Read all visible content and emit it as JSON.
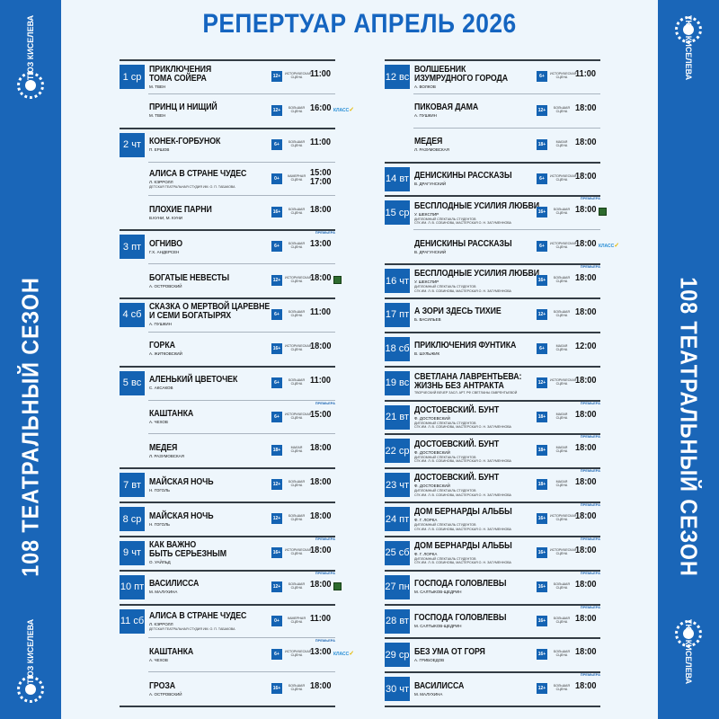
{
  "header": {
    "title": "РЕПЕРТУАР АПРЕЛЬ 2026"
  },
  "side": {
    "season": "108  ТЕАТРАЛЬНЫЙ СЕЗОН",
    "logo_text": "ТЮЗ КИСЕЛЕВА"
  },
  "colors": {
    "brand": "#1a66b8",
    "accent": "#1463b3",
    "background": "#eef6fc"
  },
  "labels": {
    "premiere": "ПРЕМЬЕРА",
    "klass": "КЛАСС"
  },
  "columns": [
    [
      {
        "day": "1 ср",
        "title": "ПРИКЛЮЧЕНИЯ\nТОМА СОЙЕРА",
        "author": "М. ТВЕН",
        "age": "12+",
        "venue": "ИСТОРИЧЕСКАЯ\nСЦЕНА",
        "time": "11:00"
      },
      {
        "title": "ПРИНЦ И НИЩИЙ",
        "author": "М. ТВЕН",
        "age": "12+",
        "venue": "БОЛЬШАЯ\nСЦЕНА",
        "time": "16:00",
        "extra": "klass"
      },
      {
        "day": "2 чт",
        "title": "КОНЕК-ГОРБУНОК",
        "author": "П. ЕРШОВ",
        "age": "6+",
        "venue": "БОЛЬШАЯ\nСЦЕНА",
        "time": "11:00"
      },
      {
        "title": "АЛИСА В СТРАНЕ ЧУДЕС",
        "author": "Л. КЭРРОЛЛ",
        "note": "ДЕТСКАЯ ТЕАТРАЛЬНАЯ СТУДИЯ ИМ. О. П. ТАБАКОВА",
        "age": "0+",
        "venue": "КАМЕРНАЯ\nСЦЕНА",
        "time": "15:00\n17:00"
      },
      {
        "title": "ПЛОХИЕ ПАРНИ",
        "author": "В.КУНИ, М. КУНИ",
        "age": "16+",
        "venue": "БОЛЬШАЯ\nСЦЕНА",
        "time": "18:00"
      },
      {
        "day": "3 пт",
        "title": "ОГНИВО",
        "author": "Г.Х. АНДЕРСЕН",
        "age": "6+",
        "venue": "БОЛЬШАЯ\nСЦЕНА",
        "time": "13:00",
        "premiere": true
      },
      {
        "title": "БОГАТЫЕ НЕВЕСТЫ",
        "author": "А. ОСТРОВСКИЙ",
        "age": "12+",
        "venue": "ИСТОРИЧЕСКАЯ\nСЦЕНА",
        "time": "18:00",
        "extra": "green"
      },
      {
        "day": "4 сб",
        "title": "СКАЗКА О МЕРТВОЙ ЦАРЕВНЕ\nИ СЕМИ БОГАТЫРЯХ",
        "author": "А. ПУШКИН",
        "age": "6+",
        "venue": "БОЛЬШАЯ\nСЦЕНА",
        "time": "11:00"
      },
      {
        "title": "ГОРКА",
        "author": "А. ЖИТКОВСКИЙ",
        "age": "16+",
        "venue": "ИСТОРИЧЕСКАЯ\nСЦЕНА",
        "time": "18:00"
      },
      {
        "day": "5 вс",
        "title": "АЛЕНЬКИЙ ЦВЕТОЧЕК",
        "author": "С. АКСАКОВ",
        "age": "6+",
        "venue": "БОЛЬШАЯ\nСЦЕНА",
        "time": "11:00"
      },
      {
        "title": "КАШТАНКА",
        "author": "А. ЧЕХОВ",
        "age": "6+",
        "venue": "ИСТОРИЧЕСКАЯ\nСЦЕНА",
        "time": "15:00",
        "premiere": true
      },
      {
        "title": "МЕДЕЯ",
        "author": "Л. РАЗУМОВСКАЯ",
        "age": "18+",
        "venue": "МАЛАЯ\nСЦЕНА",
        "time": "18:00"
      },
      {
        "day": "7 вт",
        "title": "МАЙСКАЯ НОЧЬ",
        "author": "Н. ГОГОЛЬ",
        "age": "12+",
        "venue": "БОЛЬШАЯ\nСЦЕНА",
        "time": "18:00"
      },
      {
        "day": "8 ср",
        "title": "МАЙСКАЯ НОЧЬ",
        "author": "Н. ГОГОЛЬ",
        "age": "12+",
        "venue": "БОЛЬШАЯ\nСЦЕНА",
        "time": "18:00"
      },
      {
        "day": "9 чт",
        "title": "КАК ВАЖНО\nБЫТЬ СЕРЬЕЗНЫМ",
        "author": "О. УАЙЛЬД",
        "age": "16+",
        "venue": "ИСТОРИЧЕСКАЯ\nСЦЕНА",
        "time": "18:00",
        "premiere": true
      },
      {
        "day": "10 пт",
        "title": "ВАСИЛИССА",
        "author": "М. МАЛУХИНА",
        "age": "12+",
        "venue": "БОЛЬШАЯ\nСЦЕНА",
        "time": "18:00",
        "premiere": true,
        "extra": "green"
      },
      {
        "day": "11 сб",
        "title": "АЛИСА В СТРАНЕ ЧУДЕС",
        "author": "Л. КЭРРОЛЛ",
        "note": "ДЕТСКАЯ ТЕАТРАЛЬНАЯ СТУДИЯ ИМ. О. П. ТАБАКОВА",
        "age": "0+",
        "venue": "КАМЕРНАЯ\nСЦЕНА",
        "time": "11:00"
      },
      {
        "title": "КАШТАНКА",
        "author": "А. ЧЕХОВ",
        "age": "6+",
        "venue": "ИСТОРИЧЕСКАЯ\nСЦЕНА",
        "time": "13:00",
        "premiere": true,
        "extra": "klass"
      },
      {
        "title": "ГРОЗА",
        "author": "А. ОСТРОВСКИЙ",
        "age": "16+",
        "venue": "БОЛЬШАЯ\nСЦЕНА",
        "time": "18:00"
      }
    ],
    [
      {
        "day": "12 вс",
        "title": "ВОЛШЕБНИК\nИЗУМРУДНОГО ГОРОДА",
        "author": "А. ВОЛКОВ",
        "age": "6+",
        "venue": "ИСТОРИЧЕСКАЯ\nСЦЕНА",
        "time": "11:00"
      },
      {
        "title": "ПИКОВАЯ ДАМА",
        "author": "А. ПУШКИН",
        "age": "12+",
        "venue": "БОЛЬШАЯ\nСЦЕНА",
        "time": "18:00"
      },
      {
        "title": "МЕДЕЯ",
        "author": "Л. РАЗУМОВСКАЯ",
        "age": "18+",
        "venue": "МАЛАЯ\nСЦЕНА",
        "time": "18:00"
      },
      {
        "day": "14 вт",
        "title": "ДЕНИСКИНЫ РАССКАЗЫ",
        "author": "В. ДРАГУНСКИЙ",
        "age": "6+",
        "venue": "ИСТОРИЧЕСКАЯ\nСЦЕНА",
        "time": "18:00"
      },
      {
        "day": "15 ср",
        "title": "БЕСПЛОДНЫЕ УСИЛИЯ ЛЮБВИ",
        "author": "У. ШЕКСПИР",
        "note": "ДИПЛОМНЫЙ СПЕКТАКЛЬ СТУДЕНТОВ\nСГК ИМ. Л. В. СОБИНОВА, МАСТЕРСКАЯ О. Н. ЗАГУМЕННОВА",
        "age": "16+",
        "venue": "БОЛЬШАЯ\nСЦЕНА",
        "time": "18:00",
        "premiere": true,
        "extra": "green"
      },
      {
        "title": "ДЕНИСКИНЫ РАССКАЗЫ",
        "author": "В. ДРАГУНСКИЙ",
        "age": "6+",
        "venue": "ИСТОРИЧЕСКАЯ\nСЦЕНА",
        "time": "18:00",
        "extra": "klass"
      },
      {
        "day": "16 чт",
        "title": "БЕСПЛОДНЫЕ УСИЛИЯ ЛЮБВИ",
        "author": "У. ШЕКСПИР",
        "note": "ДИПЛОМНЫЙ СПЕКТАКЛЬ СТУДЕНТОВ\nСГК ИМ. Л. В. СОБИНОВА, МАСТЕРСКАЯ О. Н. ЗАГУМЕННОВА",
        "age": "16+",
        "venue": "БОЛЬШАЯ\nСЦЕНА",
        "time": "18:00",
        "premiere": true
      },
      {
        "day": "17 пт",
        "title": "А ЗОРИ ЗДЕСЬ ТИХИЕ",
        "author": "Б. ВАСИЛЬЕВ",
        "age": "12+",
        "venue": "БОЛЬШАЯ\nСЦЕНА",
        "time": "18:00"
      },
      {
        "day": "18 сб",
        "title": "ПРИКЛЮЧЕНИЯ ФУНТИКА",
        "author": "В. ШУЛЬЖИК",
        "age": "6+",
        "venue": "МАЛАЯ\nСЦЕНА",
        "time": "12:00"
      },
      {
        "day": "19 вс",
        "title": "СВЕТЛАНА ЛАВРЕНТЬЕВА:\nЖИЗНЬ БЕЗ АНТРАКТА",
        "note": "ТВОРЧЕСКИЙ ВЕЧЕР ЗАСЛ. АРТ. РФ СВЕТЛАНЫ ЛАВРЕНТЬЕВОЙ",
        "age": "12+",
        "venue": "ИСТОРИЧЕСКАЯ\nСЦЕНА",
        "time": "18:00"
      },
      {
        "day": "21 вт",
        "title": "ДОСТОЕВСКИЙ. БУНТ",
        "author": "Ф. ДОСТОЕВСКИЙ",
        "note": "ДИПЛОМНЫЙ СПЕКТАКЛЬ СТУДЕНТОВ\nСГК ИМ. Л. В. СОБИНОВА, МАСТЕРСКАЯ О. Н. ЗАГУМЕННОВА",
        "age": "18+",
        "venue": "МАЛАЯ\nСЦЕНА",
        "time": "18:00",
        "premiere": true
      },
      {
        "day": "22 ср",
        "title": "ДОСТОЕВСКИЙ. БУНТ",
        "author": "Ф. ДОСТОЕВСКИЙ",
        "note": "ДИПЛОМНЫЙ СПЕКТАКЛЬ СТУДЕНТОВ\nСГК ИМ. Л. В. СОБИНОВА, МАСТЕРСКАЯ О. Н. ЗАГУМЕННОВА",
        "age": "18+",
        "venue": "МАЛАЯ\nСЦЕНА",
        "time": "18:00",
        "premiere": true
      },
      {
        "day": "23 чт",
        "title": "ДОСТОЕВСКИЙ. БУНТ",
        "author": "Ф. ДОСТОЕВСКИЙ",
        "note": "ДИПЛОМНЫЙ СПЕКТАКЛЬ СТУДЕНТОВ\nСГК ИМ. Л. В. СОБИНОВА, МАСТЕРСКАЯ О. Н. ЗАГУМЕННОВА",
        "age": "18+",
        "venue": "МАЛАЯ\nСЦЕНА",
        "time": "18:00",
        "premiere": true
      },
      {
        "day": "24 пт",
        "title": "ДОМ БЕРНАРДЫ АЛЬБЫ",
        "author": "Ф. Г. ЛОРКА",
        "note": "ДИПЛОМНЫЙ СПЕКТАКЛЬ СТУДЕНТОВ\nСГК ИМ. Л. В. СОБИНОВА, МАСТЕРСКАЯ О. Н. ЗАГУМЕННОВА",
        "age": "16+",
        "venue": "ИСТОРИЧЕСКАЯ\nСЦЕНА",
        "time": "18:00",
        "premiere": true
      },
      {
        "day": "25 сб",
        "title": "ДОМ БЕРНАРДЫ АЛЬБЫ",
        "author": "Ф. Г. ЛОРКА",
        "note": "ДИПЛОМНЫЙ СПЕКТАКЛЬ СТУДЕНТОВ\nСГК ИМ. Л. В. СОБИНОВА, МАСТЕРСКАЯ О. Н. ЗАГУМЕННОВА",
        "age": "16+",
        "venue": "ИСТОРИЧЕСКАЯ\nСЦЕНА",
        "time": "18:00",
        "premiere": true
      },
      {
        "day": "27 пн",
        "title": "ГОСПОДА ГОЛОВЛЕВЫ",
        "author": "М. САЛТЫКОВ-ЩЕДРИН",
        "age": "16+",
        "venue": "БОЛЬШАЯ\nСЦЕНА",
        "time": "18:00",
        "premiere": true
      },
      {
        "day": "28 вт",
        "title": "ГОСПОДА ГОЛОВЛЕВЫ",
        "author": "М. САЛТЫКОВ-ЩЕДРИН",
        "age": "16+",
        "venue": "БОЛЬШАЯ\nСЦЕНА",
        "time": "18:00",
        "premiere": true
      },
      {
        "day": "29 ср",
        "title": "БЕЗ УМА ОТ ГОРЯ",
        "author": "А. ГРИБОЕДОВ",
        "age": "16+",
        "venue": "БОЛЬШАЯ\nСЦЕНА",
        "time": "18:00"
      },
      {
        "day": "30 чт",
        "title": "ВАСИЛИССА",
        "author": "М. МАЛУХИНА",
        "age": "12+",
        "venue": "БОЛЬШАЯ\nСЦЕНА",
        "time": "18:00",
        "premiere": true
      }
    ]
  ]
}
